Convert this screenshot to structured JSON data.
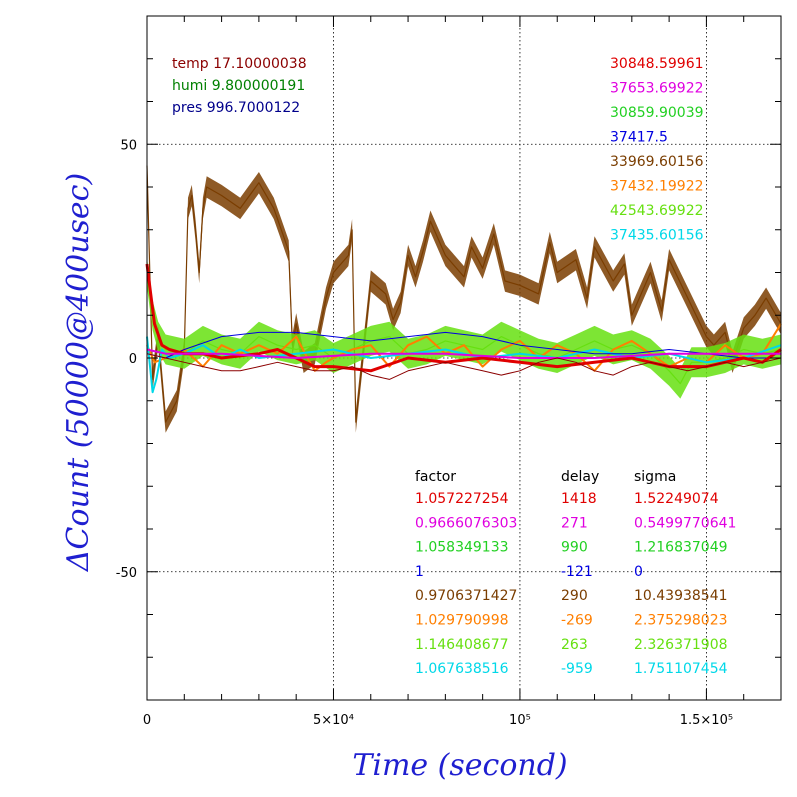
{
  "chart_data": {
    "type": "line",
    "xlabel": "Time (second)",
    "ylabel": "ΔCount (50000@400usec)",
    "xlim": [
      0,
      170000
    ],
    "ylim": [
      -80,
      80
    ],
    "grid": true,
    "x_ticks": [
      {
        "value": 0,
        "label": "0"
      },
      {
        "value": 50000,
        "label": "5×10⁴"
      },
      {
        "value": 100000,
        "label": "10⁵"
      },
      {
        "value": 150000,
        "label": "1.5×10⁵"
      }
    ],
    "y_ticks": [
      {
        "value": -50,
        "label": "-50"
      },
      {
        "value": 0,
        "label": "0"
      },
      {
        "value": 50,
        "label": "50"
      }
    ],
    "env": [
      {
        "label": "temp 17.10000038",
        "color": "#8b0000"
      },
      {
        "label": "humi 9.800000191",
        "color": "#008000"
      },
      {
        "label": "pres 996.7000122",
        "color": "#00008b"
      }
    ],
    "legend_values": [
      {
        "label": "30848.59961",
        "color": "#e00000"
      },
      {
        "label": "37653.69922",
        "color": "#e000e0"
      },
      {
        "label": "30859.90039",
        "color": "#22d022"
      },
      {
        "label": "37417.5",
        "color": "#0000e0"
      },
      {
        "label": "33969.60156",
        "color": "#7a3d00"
      },
      {
        "label": "37432.19922",
        "color": "#ff7f00"
      },
      {
        "label": "42543.69922",
        "color": "#66e010"
      },
      {
        "label": "37435.60156",
        "color": "#00d8e8"
      }
    ],
    "table": {
      "headers": [
        "factor",
        "delay",
        "sigma"
      ],
      "rows": [
        {
          "factor": "1.057227254",
          "delay": "1418",
          "sigma": "1.52249074",
          "color": "#e00000"
        },
        {
          "factor": "0.9666076303",
          "delay": "271",
          "sigma": "0.5499770641",
          "color": "#e000e0"
        },
        {
          "factor": "1.058349133",
          "delay": "990",
          "sigma": "1.216837049",
          "color": "#22d022"
        },
        {
          "factor": "1",
          "delay": "-121",
          "sigma": "0",
          "color": "#0000e0"
        },
        {
          "factor": "0.9706371427",
          "delay": "290",
          "sigma": "10.43938541",
          "color": "#7a3d00"
        },
        {
          "factor": "1.029790998",
          "delay": "-269",
          "sigma": "2.375298023",
          "color": "#ff7f00"
        },
        {
          "factor": "1.146408677",
          "delay": "263",
          "sigma": "2.326371908",
          "color": "#66e010"
        },
        {
          "factor": "1.067638516",
          "delay": "-959",
          "sigma": "1.751107454",
          "color": "#00d8e8"
        }
      ]
    },
    "series": [
      {
        "color": "#7a3d00",
        "band": 2.5,
        "width": 1.2,
        "x": [
          0,
          1500,
          3000,
          5000,
          8000,
          10000,
          11000,
          12000,
          13000,
          14000,
          15000,
          16000,
          20000,
          25000,
          30000,
          34000,
          36000,
          38000,
          39000,
          40000,
          42000,
          45000,
          48000,
          50000,
          54000,
          55000,
          56000,
          60000,
          64000,
          66000,
          68000,
          70000,
          72000,
          74000,
          76000,
          80000,
          82000,
          85000,
          87000,
          90000,
          93000,
          96000,
          100000,
          105000,
          108000,
          110000,
          115000,
          118000,
          120000,
          125000,
          128000,
          130000,
          135000,
          138000,
          140000,
          145000,
          150000,
          152000,
          155000,
          157000,
          160000,
          163000,
          166000,
          170000
        ],
        "y": [
          45,
          -5,
          5,
          -15,
          -10,
          2,
          35,
          38,
          30,
          20,
          35,
          40,
          38,
          35,
          41,
          35,
          30,
          25,
          3,
          8,
          -1,
          1,
          14,
          20,
          24,
          30,
          -15,
          18,
          15,
          9,
          13,
          24,
          19,
          25,
          32,
          24,
          22,
          19,
          26,
          21,
          29,
          18,
          17,
          15,
          27,
          20,
          23,
          14,
          26,
          18,
          22,
          10,
          20,
          11,
          23,
          14,
          5,
          3,
          6,
          -1,
          7,
          10,
          14,
          8
        ]
      },
      {
        "color": "#66e010",
        "band": 3.5,
        "width": 1.2,
        "x": [
          0,
          1500,
          3000,
          5000,
          10000,
          15000,
          20000,
          25000,
          30000,
          35000,
          40000,
          45000,
          50000,
          55000,
          60000,
          65000,
          70000,
          75000,
          80000,
          85000,
          90000,
          95000,
          100000,
          105000,
          110000,
          115000,
          120000,
          125000,
          130000,
          135000,
          140000,
          143000,
          146000,
          150000,
          155000,
          160000,
          165000,
          170000
        ],
        "y": [
          20,
          10,
          5,
          2,
          1,
          4,
          2,
          1,
          5,
          3,
          2,
          3,
          0,
          2,
          4,
          5,
          1,
          2,
          4,
          3,
          2,
          5,
          3,
          1,
          0,
          2,
          4,
          2,
          3,
          1,
          -3,
          -6,
          -1,
          -1,
          0,
          2,
          1,
          2
        ]
      },
      {
        "color": "#ff7f00",
        "band": 0,
        "width": 2,
        "x": [
          0,
          2000,
          5000,
          10000,
          15000,
          20000,
          25000,
          30000,
          35000,
          40000,
          43000,
          45000,
          48000,
          50000,
          55000,
          60000,
          65000,
          70000,
          75000,
          80000,
          85000,
          90000,
          95000,
          100000,
          105000,
          110000,
          115000,
          120000,
          125000,
          130000,
          135000,
          140000,
          145000,
          150000,
          155000,
          160000,
          165000,
          170000
        ],
        "y": [
          3,
          -1,
          0,
          2,
          -2,
          3,
          1,
          3,
          1,
          5,
          0,
          -3,
          -1,
          0,
          2,
          3,
          -2,
          3,
          5,
          1,
          3,
          -2,
          2,
          4,
          0,
          3,
          1,
          -3,
          2,
          4,
          1,
          -2,
          0,
          -1,
          3,
          0,
          1,
          8
        ]
      },
      {
        "color": "#00d8e8",
        "band": 0,
        "width": 2,
        "x": [
          0,
          1500,
          2500,
          4000,
          6000,
          10000,
          15000,
          20000,
          25000,
          30000,
          40000,
          50000,
          60000,
          70000,
          80000,
          90000,
          100000,
          110000,
          120000,
          130000,
          140000,
          150000,
          160000,
          170000
        ],
        "y": [
          5,
          -8,
          -5,
          2,
          0,
          1,
          3,
          0,
          2,
          0,
          1,
          2,
          0,
          1,
          2,
          0,
          1,
          0,
          2,
          0,
          1,
          -1,
          0,
          3
        ]
      },
      {
        "color": "#0000e0",
        "band": 0,
        "width": 1,
        "x": [
          0,
          5000,
          10000,
          20000,
          30000,
          40000,
          50000,
          60000,
          70000,
          80000,
          90000,
          100000,
          110000,
          120000,
          130000,
          140000,
          150000,
          160000,
          170000
        ],
        "y": [
          1,
          0,
          2,
          5,
          6,
          6,
          5,
          4,
          5,
          6,
          5,
          3,
          2,
          1,
          1,
          2,
          1,
          0,
          0
        ]
      },
      {
        "color": "#e00000",
        "band": 0,
        "width": 3,
        "x": [
          0,
          1000,
          2000,
          4000,
          6000,
          10000,
          15000,
          20000,
          30000,
          35000,
          40000,
          45000,
          50000,
          60000,
          70000,
          80000,
          90000,
          100000,
          110000,
          120000,
          130000,
          140000,
          150000,
          160000,
          165000,
          170000
        ],
        "y": [
          22,
          15,
          8,
          3,
          2,
          1,
          1,
          0,
          1,
          2,
          0,
          -2,
          -2,
          -3,
          0,
          -1,
          0,
          -1,
          -2,
          -1,
          0,
          -2,
          -2,
          0,
          -1,
          2
        ]
      },
      {
        "color": "#e000e0",
        "band": 0,
        "width": 2,
        "x": [
          0,
          5000,
          10000,
          20000,
          40000,
          60000,
          80000,
          100000,
          120000,
          140000,
          160000,
          170000
        ],
        "y": [
          2,
          1,
          1,
          1,
          0,
          1,
          1,
          0,
          0,
          1,
          1,
          1
        ]
      },
      {
        "color": "#8b0000",
        "band": 0,
        "width": 1,
        "x": [
          0,
          5000,
          10000,
          15000,
          20000,
          25000,
          30000,
          35000,
          40000,
          45000,
          50000,
          55000,
          60000,
          65000,
          70000,
          75000,
          80000,
          85000,
          90000,
          95000,
          100000,
          105000,
          110000,
          115000,
          120000,
          125000,
          130000,
          135000,
          140000,
          145000,
          150000,
          155000,
          160000,
          165000,
          170000
        ],
        "y": [
          1,
          0,
          -1,
          -2,
          -3,
          -3,
          -2,
          -1,
          -2,
          -3,
          -3,
          -2,
          -4,
          -5,
          -3,
          -2,
          -1,
          -2,
          -3,
          -4,
          -3,
          -1,
          0,
          -1,
          -3,
          -4,
          -2,
          -1,
          -2,
          -3,
          -2,
          -1,
          -2,
          -1,
          0
        ]
      }
    ]
  }
}
